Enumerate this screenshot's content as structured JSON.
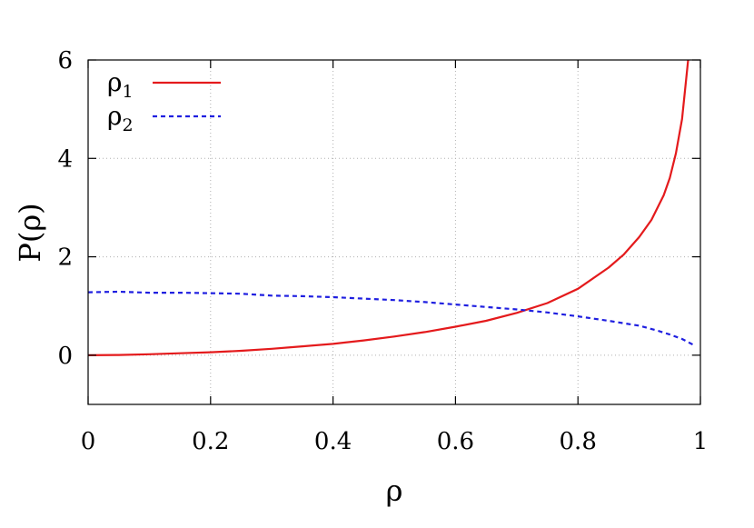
{
  "chart_data": {
    "type": "line",
    "title": "",
    "xlabel": "ρ",
    "ylabel": "P(ρ)",
    "xlim": [
      0,
      1
    ],
    "ylim": [
      -1,
      6
    ],
    "xticks": [
      0,
      0.2,
      0.4,
      0.6,
      0.8,
      1
    ],
    "xtick_labels": [
      "0",
      "0.2",
      "0.4",
      "0.6",
      "0.8",
      "1"
    ],
    "yticks": [
      0,
      2,
      4,
      6
    ],
    "ytick_labels": [
      "0",
      "2",
      "4",
      "6"
    ],
    "grid": true,
    "legend_position": "top-left",
    "series": [
      {
        "name": "ρ1",
        "legend_base": "ρ",
        "legend_sub": "1",
        "color": "#e41a1c",
        "line_style": "solid",
        "x": [
          0,
          0.05,
          0.1,
          0.15,
          0.2,
          0.25,
          0.3,
          0.35,
          0.4,
          0.45,
          0.5,
          0.55,
          0.6,
          0.65,
          0.7,
          0.75,
          0.8,
          0.85,
          0.875,
          0.9,
          0.92,
          0.94,
          0.95,
          0.96,
          0.97,
          0.98
        ],
        "y": [
          0,
          0.005,
          0.02,
          0.04,
          0.06,
          0.09,
          0.13,
          0.18,
          0.23,
          0.3,
          0.38,
          0.47,
          0.58,
          0.7,
          0.86,
          1.06,
          1.35,
          1.78,
          2.05,
          2.4,
          2.75,
          3.25,
          3.6,
          4.1,
          4.8,
          6.0
        ]
      },
      {
        "name": "ρ2",
        "legend_base": "ρ",
        "legend_sub": "2",
        "color": "#1f1fe0",
        "line_style": "dashed",
        "x": [
          0,
          0.05,
          0.1,
          0.15,
          0.2,
          0.25,
          0.3,
          0.35,
          0.4,
          0.45,
          0.5,
          0.55,
          0.6,
          0.65,
          0.7,
          0.75,
          0.8,
          0.85,
          0.9,
          0.93,
          0.95,
          0.97,
          0.99
        ],
        "y": [
          1.28,
          1.29,
          1.27,
          1.27,
          1.26,
          1.25,
          1.21,
          1.2,
          1.18,
          1.15,
          1.12,
          1.08,
          1.03,
          0.98,
          0.93,
          0.87,
          0.79,
          0.7,
          0.6,
          0.5,
          0.42,
          0.33,
          0.2
        ]
      }
    ]
  }
}
